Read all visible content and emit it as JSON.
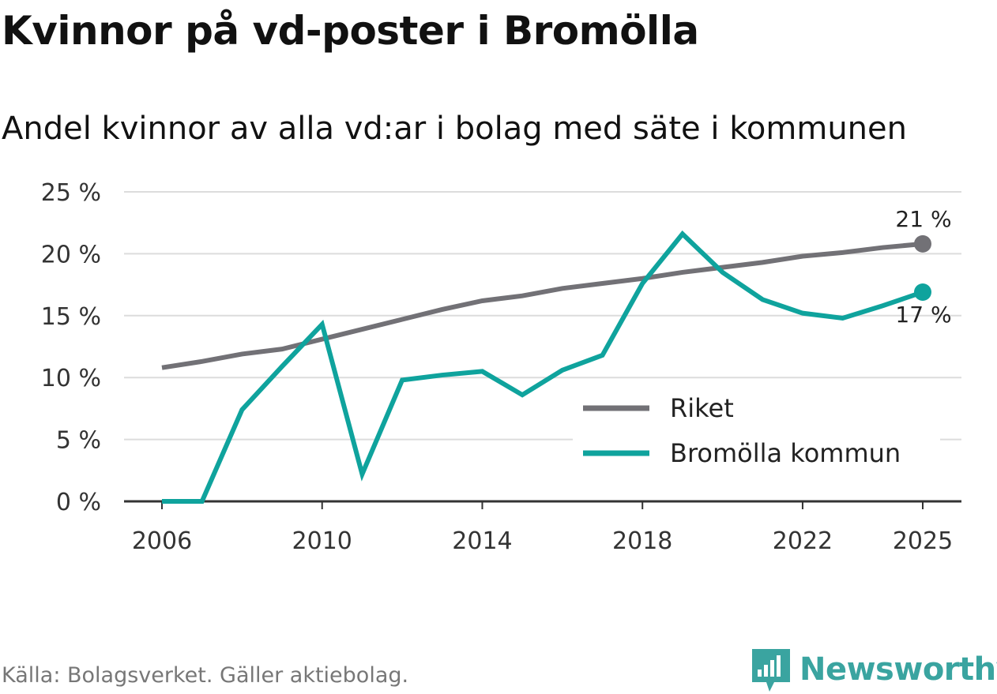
{
  "title": "Kvinnor på vd-poster i Bromölla",
  "subtitle": "Andel kvinnor av alla vd:ar i bolag med säte i kommunen",
  "source": "Källa: Bolagsverket. Gäller aktiebolag.",
  "brand": {
    "name": "Newsworthy",
    "color": "#3aa4a0",
    "icon": "bar-chart-logo-icon"
  },
  "chart_data": {
    "type": "line",
    "title": "Kvinnor på vd-poster i Bromölla",
    "xlabel": "",
    "ylabel": "",
    "xlim": [
      2006,
      2025
    ],
    "ylim": [
      0,
      25
    ],
    "x_ticks": [
      2006,
      2010,
      2014,
      2018,
      2022,
      2025
    ],
    "y_ticks": [
      0,
      5,
      10,
      15,
      20,
      25
    ],
    "x_tick_labels": [
      "2006",
      "2010",
      "2014",
      "2018",
      "2022",
      "2025"
    ],
    "y_tick_labels": [
      "0 %",
      "5 %",
      "10 %",
      "15 %",
      "20 %",
      "25 %"
    ],
    "grid": true,
    "legend_position": "bottom-right",
    "x": [
      2006,
      2007,
      2008,
      2009,
      2010,
      2011,
      2012,
      2013,
      2014,
      2015,
      2016,
      2017,
      2018,
      2019,
      2020,
      2021,
      2022,
      2023,
      2024,
      2025
    ],
    "series": [
      {
        "name": "Riket",
        "color": "#727176",
        "values": [
          10.8,
          11.3,
          11.9,
          12.3,
          13.1,
          13.9,
          14.7,
          15.5,
          16.2,
          16.6,
          17.2,
          17.6,
          18.0,
          18.5,
          18.9,
          19.3,
          19.8,
          20.1,
          20.5,
          20.8
        ],
        "end_label": "21 %"
      },
      {
        "name": "Bromölla kommun",
        "color": "#0fa39d",
        "values": [
          0.0,
          0.0,
          7.4,
          10.9,
          14.3,
          2.2,
          9.8,
          10.2,
          10.5,
          8.6,
          10.6,
          11.8,
          17.6,
          21.6,
          18.5,
          16.3,
          15.2,
          14.8,
          15.8,
          16.9
        ],
        "end_label": "17 %"
      }
    ]
  }
}
